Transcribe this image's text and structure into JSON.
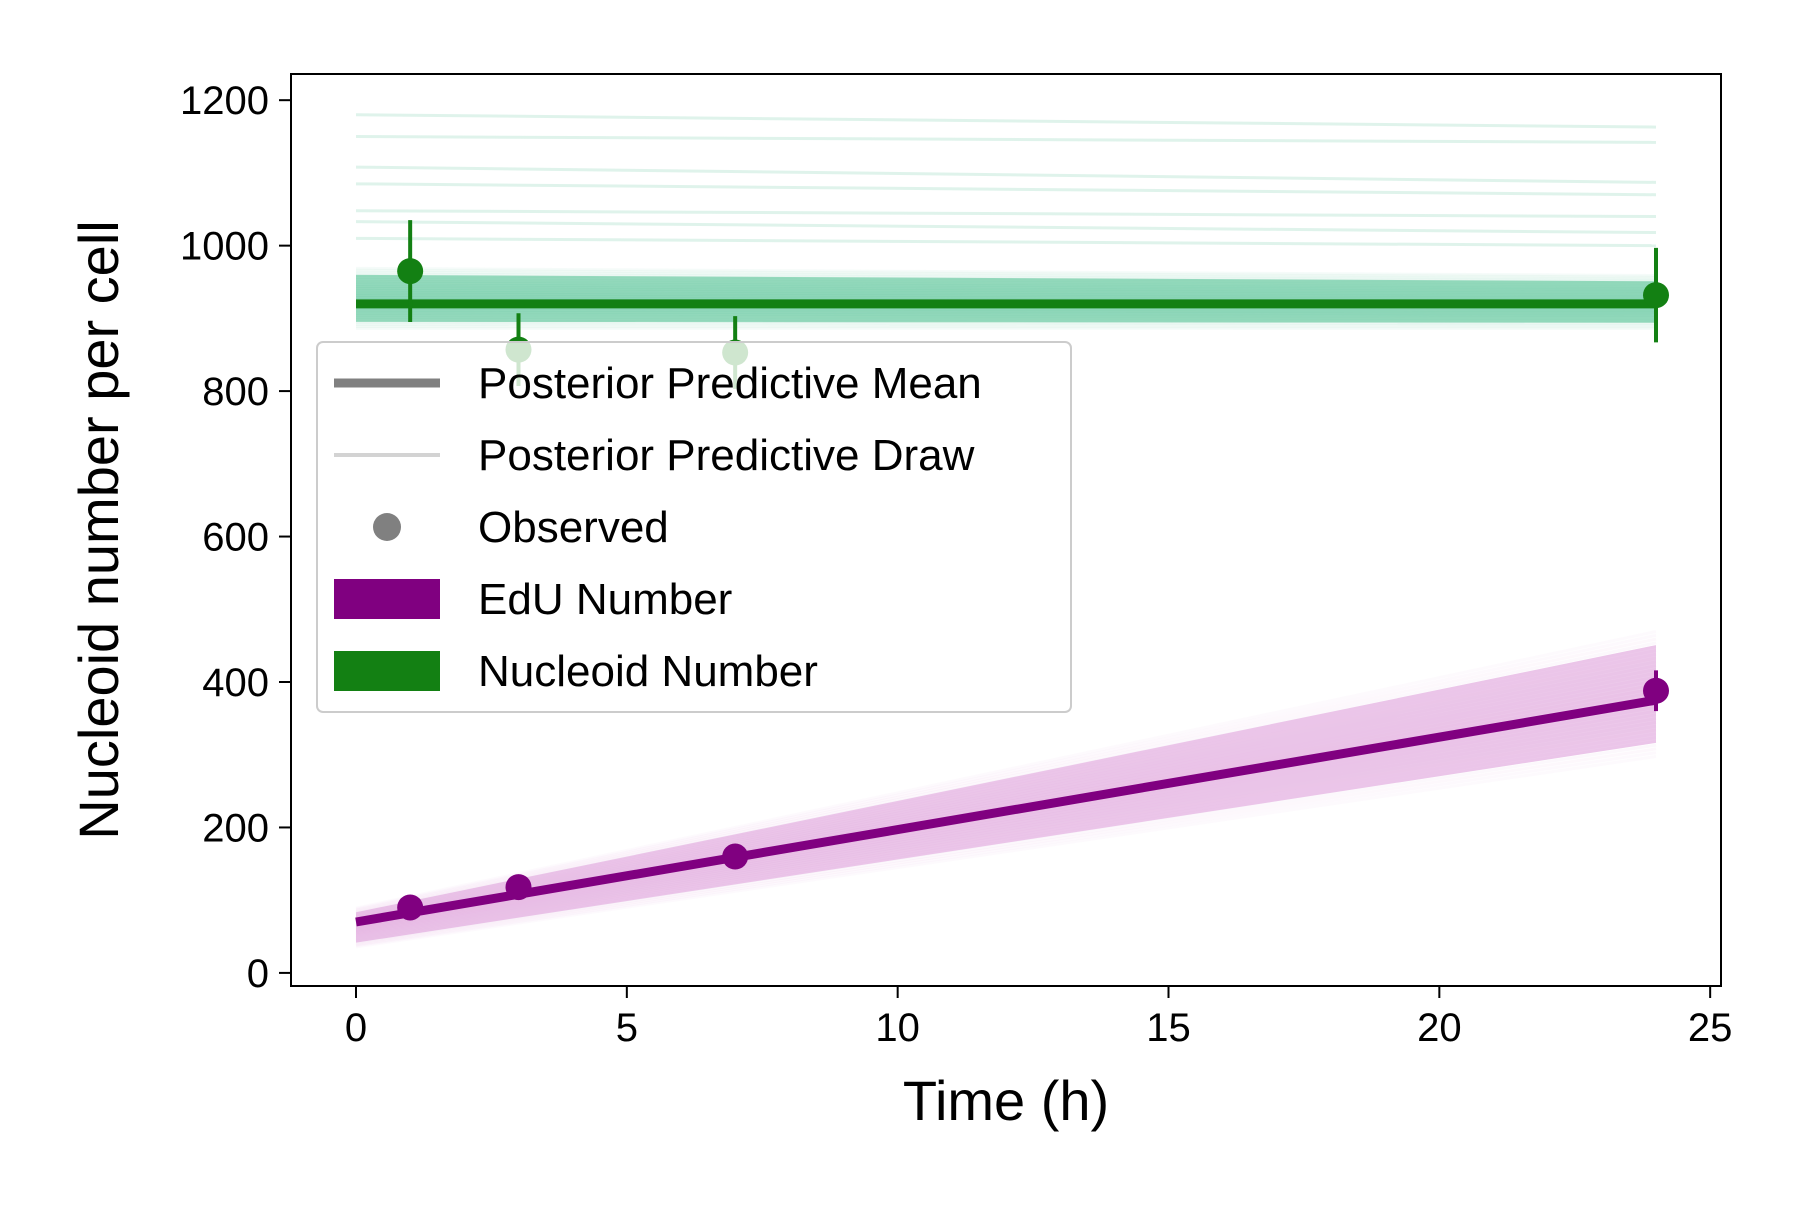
{
  "chart_data": {
    "type": "line",
    "title": "",
    "xlabel": "Time (h)",
    "ylabel": "Nucleoid number per cell",
    "xlim": [
      -1.2,
      25.2
    ],
    "ylim": [
      -18,
      1236
    ],
    "x_ticks": [
      0,
      5,
      10,
      15,
      20,
      25
    ],
    "y_ticks": [
      0,
      200,
      400,
      600,
      800,
      1000,
      1200
    ],
    "x_tick_labels": [
      "0",
      "5",
      "10",
      "15",
      "20",
      "25"
    ],
    "y_tick_labels": [
      "0",
      "200",
      "400",
      "600",
      "800",
      "1000",
      "1200"
    ],
    "grid": false,
    "legend_position": "upper-left",
    "legend": [
      {
        "label": "Posterior Predictive Mean",
        "marker": "thick-line",
        "color": "#808080"
      },
      {
        "label": "Posterior Predictive Draw",
        "marker": "thin-line",
        "color": "#d3d3d3"
      },
      {
        "label": "Observed",
        "marker": "dot",
        "color": "#808080"
      },
      {
        "label": "EdU Number",
        "marker": "patch",
        "color": "#800080"
      },
      {
        "label": "Nucleoid Number",
        "marker": "patch",
        "color": "#138013"
      }
    ],
    "series": [
      {
        "name": "Nucleoid Number",
        "color": "#138013",
        "draw_color": "#4dbf90",
        "mean": {
          "x": [
            0,
            24
          ],
          "y": [
            920,
            920
          ]
        },
        "band": {
          "x": [
            0,
            24
          ],
          "lower": [
            885,
            885
          ],
          "upper": [
            970,
            960
          ]
        },
        "outlier_draws": [
          {
            "x": [
              0,
              24
            ],
            "y": [
              1180,
              1163
            ]
          },
          {
            "x": [
              0,
              24
            ],
            "y": [
              1150,
              1142
            ]
          },
          {
            "x": [
              0,
              24
            ],
            "y": [
              1108,
              1087
            ]
          },
          {
            "x": [
              0,
              24
            ],
            "y": [
              1085,
              1070
            ]
          },
          {
            "x": [
              0,
              24
            ],
            "y": [
              1048,
              1040
            ]
          },
          {
            "x": [
              0,
              24
            ],
            "y": [
              1033,
              1018
            ]
          },
          {
            "x": [
              0,
              24
            ],
            "y": [
              1010,
              1000
            ]
          }
        ],
        "observed": {
          "x": [
            1,
            3,
            7,
            24
          ],
          "y": [
            965,
            857,
            853,
            932
          ],
          "err": [
            70,
            50,
            50,
            65
          ]
        }
      },
      {
        "name": "EdU Number",
        "color": "#800080",
        "draw_color": "#dc9cd9",
        "mean": {
          "x": [
            0,
            24
          ],
          "y": [
            70,
            375
          ]
        },
        "band": {
          "x": [
            0,
            24
          ],
          "lower": [
            35,
            295
          ],
          "upper": [
            90,
            472
          ]
        },
        "outlier_draws": [],
        "observed": {
          "x": [
            1,
            3,
            7,
            24
          ],
          "y": [
            90,
            118,
            160,
            388
          ],
          "err": [
            0,
            0,
            0,
            28
          ]
        }
      }
    ]
  }
}
